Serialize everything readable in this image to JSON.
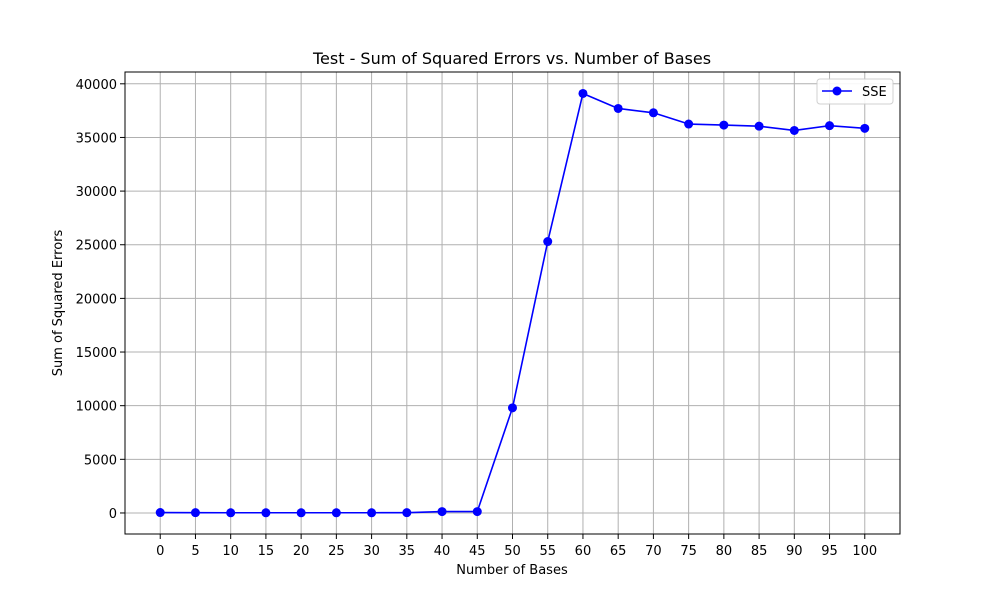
{
  "chart_data": {
    "type": "line",
    "title": "Test - Sum of Squared Errors vs. Number of Bases",
    "xlabel": "Number of Bases",
    "ylabel": "Sum of Squared Errors",
    "x": [
      0,
      5,
      10,
      15,
      20,
      25,
      30,
      35,
      40,
      45,
      50,
      55,
      60,
      65,
      70,
      75,
      80,
      85,
      90,
      95,
      100
    ],
    "series": [
      {
        "name": "SSE",
        "color": "#0000ff",
        "marker": "circle",
        "values": [
          40,
          30,
          20,
          20,
          20,
          20,
          20,
          30,
          130,
          130,
          9800,
          25300,
          39100,
          37700,
          37300,
          36250,
          36150,
          36050,
          35650,
          36100,
          35850
        ]
      }
    ],
    "xticks": [
      "0",
      "5",
      "10",
      "15",
      "20",
      "25",
      "30",
      "35",
      "40",
      "45",
      "50",
      "55",
      "60",
      "65",
      "70",
      "75",
      "80",
      "85",
      "90",
      "95",
      "100"
    ],
    "yticks": [
      "0",
      "5000",
      "10000",
      "15000",
      "20000",
      "25000",
      "30000",
      "35000",
      "40000"
    ],
    "xlim": [
      -5,
      105
    ],
    "ylim": [
      -1960,
      41100
    ],
    "grid": true,
    "legend_position": "upper-right"
  }
}
